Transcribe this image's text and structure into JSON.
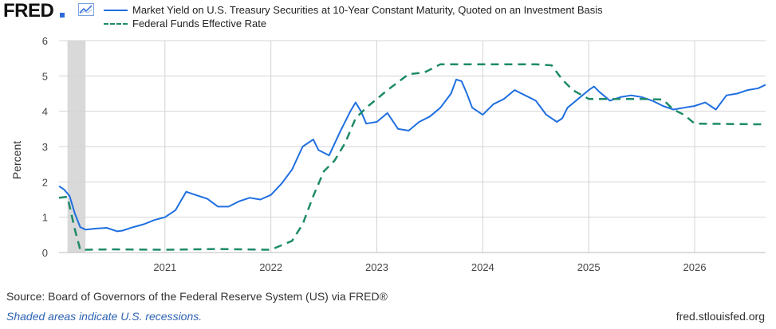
{
  "brand": "FRED",
  "icons": {
    "logo_mark": "fred-chart-icon"
  },
  "footer": {
    "source": "Source: Board of Governors of the Federal Reserve System (US) via FRED®",
    "note": "Shaded areas indicate U.S. recessions.",
    "site": "fred.stlouisfed.org"
  },
  "colors": {
    "yield": "#1f6fe0",
    "ffr": "#1e8a6a",
    "recession": "#d9d9d9",
    "grid": "#d4d4d4",
    "plot_bg": "#ffffff"
  },
  "chart_data": {
    "type": "line",
    "ylabel": "Percent",
    "ylim": [
      0,
      6
    ],
    "yticks": [
      0,
      1,
      2,
      3,
      4,
      5,
      6
    ],
    "xlim": [
      2020.0,
      2026.67
    ],
    "xticks": [
      2021,
      2022,
      2023,
      2024,
      2025,
      2026
    ],
    "grid": true,
    "legend_position": "top",
    "recession": [
      2020.08,
      2020.25
    ],
    "series": [
      {
        "name": "Market Yield on U.S. Treasury Securities at 10-Year Constant Maturity, Quoted on an Investment Basis",
        "style": "solid",
        "x": [
          2020.0,
          2020.05,
          2020.1,
          2020.15,
          2020.2,
          2020.25,
          2020.35,
          2020.45,
          2020.55,
          2020.6,
          2020.7,
          2020.8,
          2020.9,
          2021.0,
          2021.1,
          2021.2,
          2021.3,
          2021.4,
          2021.5,
          2021.6,
          2021.7,
          2021.8,
          2021.9,
          2022.0,
          2022.1,
          2022.2,
          2022.3,
          2022.4,
          2022.45,
          2022.55,
          2022.65,
          2022.75,
          2022.8,
          2022.85,
          2022.9,
          2023.0,
          2023.1,
          2023.2,
          2023.3,
          2023.4,
          2023.5,
          2023.6,
          2023.7,
          2023.75,
          2023.8,
          2023.85,
          2023.9,
          2024.0,
          2024.1,
          2024.2,
          2024.3,
          2024.4,
          2024.5,
          2024.6,
          2024.7,
          2024.75,
          2024.8,
          2024.9,
          2025.0,
          2025.05,
          2025.1,
          2025.2,
          2025.3,
          2025.4,
          2025.5,
          2025.6,
          2025.7,
          2025.8,
          2025.9,
          2026.0,
          2026.1,
          2026.2,
          2026.3,
          2026.4,
          2026.5,
          2026.6,
          2026.67
        ],
        "values": [
          1.88,
          1.78,
          1.6,
          1.1,
          0.72,
          0.65,
          0.68,
          0.7,
          0.6,
          0.62,
          0.72,
          0.8,
          0.92,
          1.0,
          1.2,
          1.72,
          1.62,
          1.52,
          1.3,
          1.3,
          1.45,
          1.55,
          1.5,
          1.63,
          1.95,
          2.35,
          3.0,
          3.2,
          2.9,
          2.75,
          3.4,
          4.0,
          4.25,
          4.0,
          3.65,
          3.7,
          3.95,
          3.5,
          3.45,
          3.7,
          3.85,
          4.1,
          4.5,
          4.9,
          4.85,
          4.5,
          4.1,
          3.9,
          4.2,
          4.35,
          4.6,
          4.45,
          4.3,
          3.9,
          3.7,
          3.8,
          4.1,
          4.35,
          4.6,
          4.7,
          4.55,
          4.3,
          4.4,
          4.45,
          4.4,
          4.3,
          4.15,
          4.05,
          4.1,
          4.15,
          4.25,
          4.05,
          4.45,
          4.5,
          4.6,
          4.65,
          4.75
        ]
      },
      {
        "name": "Federal Funds Effective Rate",
        "style": "dashed",
        "x": [
          2020.0,
          2020.08,
          2020.15,
          2020.2,
          2020.25,
          2020.5,
          2021.0,
          2021.5,
          2022.0,
          2022.2,
          2022.3,
          2022.4,
          2022.5,
          2022.6,
          2022.7,
          2022.8,
          2022.9,
          2023.0,
          2023.1,
          2023.3,
          2023.45,
          2023.6,
          2024.0,
          2024.5,
          2024.65,
          2024.75,
          2024.85,
          2025.0,
          2025.5,
          2025.7,
          2025.8,
          2025.9,
          2026.0,
          2026.67
        ],
        "values": [
          1.55,
          1.58,
          0.65,
          0.08,
          0.08,
          0.09,
          0.08,
          0.1,
          0.08,
          0.33,
          0.8,
          1.6,
          2.3,
          2.6,
          3.1,
          3.8,
          4.1,
          4.35,
          4.6,
          5.05,
          5.1,
          5.33,
          5.33,
          5.33,
          5.3,
          4.9,
          4.6,
          4.35,
          4.35,
          4.33,
          4.05,
          3.9,
          3.65,
          3.63
        ]
      }
    ]
  }
}
